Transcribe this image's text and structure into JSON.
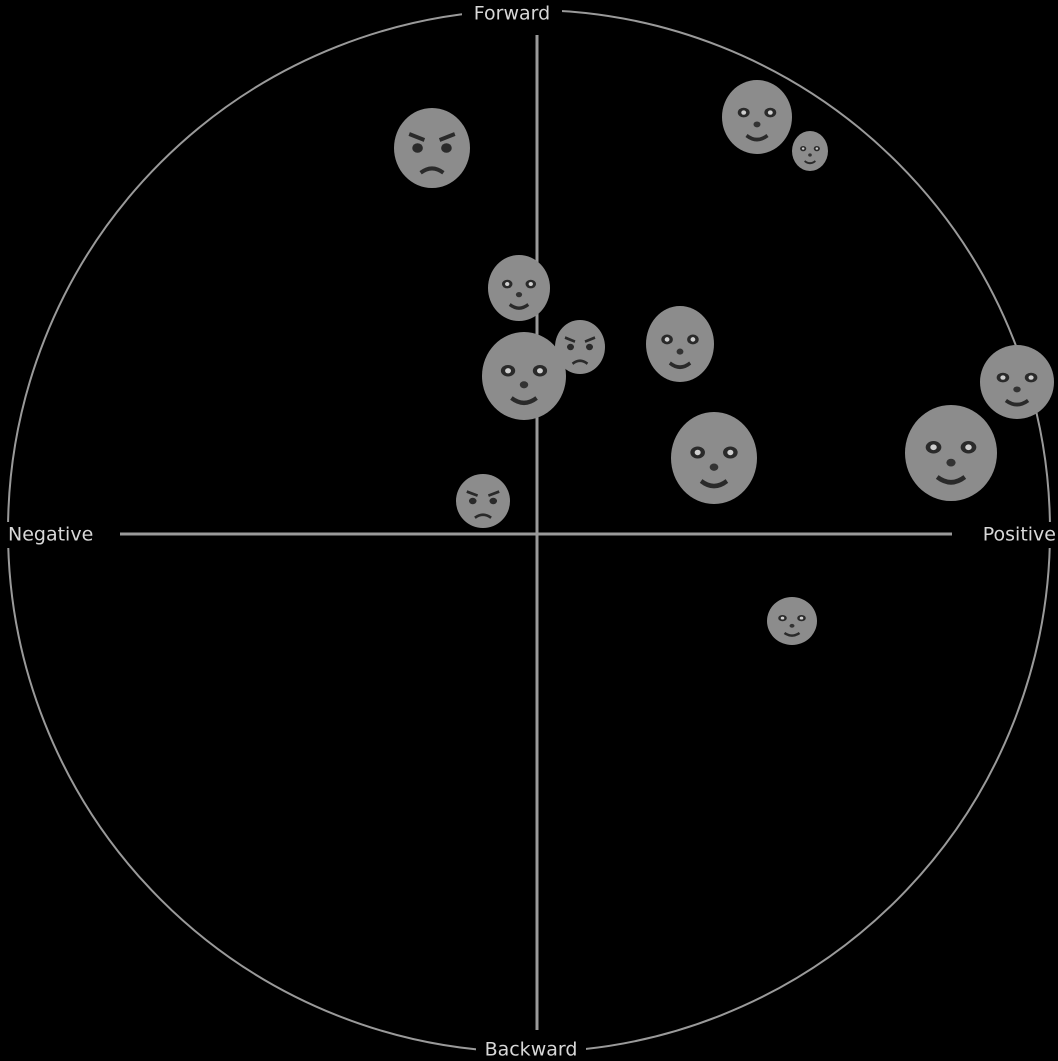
{
  "labels": {
    "top": "Forward",
    "bottom": "Backward",
    "left": "Negative",
    "right": "Positive"
  }
}
